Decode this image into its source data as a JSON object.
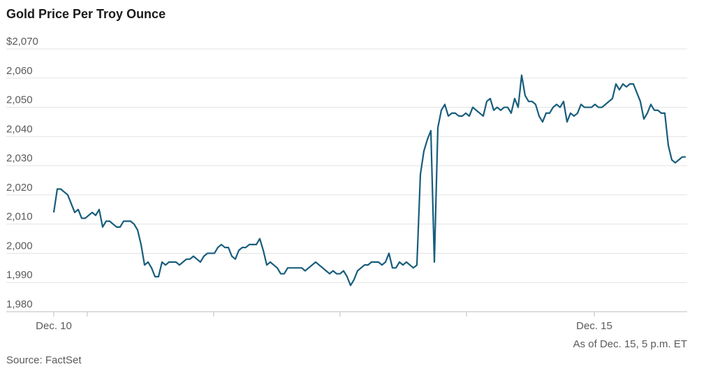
{
  "chart_data": {
    "type": "line",
    "title": "Gold Price Per Troy Ounce",
    "note": "As of Dec. 15, 5 p.m. ET",
    "source": "Source: FactSet",
    "color": "#175d7c",
    "grid": true,
    "ylim": [
      1980,
      2070
    ],
    "yticks": [
      {
        "value": 1980,
        "label": "1,980"
      },
      {
        "value": 1990,
        "label": "1,990"
      },
      {
        "value": 2000,
        "label": "2,000"
      },
      {
        "value": 2010,
        "label": "2,010"
      },
      {
        "value": 2020,
        "label": "2,020"
      },
      {
        "value": 2030,
        "label": "2,030"
      },
      {
        "value": 2040,
        "label": "2,040"
      },
      {
        "value": 2050,
        "label": "2,050"
      },
      {
        "value": 2060,
        "label": "2,060"
      },
      {
        "value": 2070,
        "label": "$2,070"
      }
    ],
    "xlim": [
      0,
      181.4
    ],
    "xticks": [
      {
        "value": 0,
        "label": "Dec. 10"
      },
      {
        "value": 9.6,
        "label": null
      },
      {
        "value": 45.8,
        "label": null
      },
      {
        "value": 82,
        "label": null
      },
      {
        "value": 118.2,
        "label": null
      },
      {
        "value": 154.8,
        "label": "Dec. 15"
      }
    ],
    "values": [
      2014,
      2022,
      2022,
      2021,
      2020,
      2017,
      2014,
      2015,
      2012,
      2012,
      2013,
      2014,
      2013,
      2015,
      2009,
      2011,
      2011,
      2010,
      2009,
      2009,
      2011,
      2011,
      2011,
      2010,
      2008,
      2003,
      1996,
      1997,
      1995,
      1992,
      1992,
      1997,
      1996,
      1997,
      1997,
      1997,
      1996,
      1997,
      1998,
      1998,
      1999,
      1998,
      1997,
      1999,
      2000,
      2000,
      2000,
      2002,
      2003,
      2002,
      2002,
      1999,
      1998,
      2001,
      2002,
      2002,
      2003,
      2003,
      2003,
      2005,
      2001,
      1996,
      1997,
      1996,
      1995,
      1993,
      1993,
      1995,
      1995,
      1995,
      1995,
      1995,
      1994,
      1995,
      1996,
      1997,
      1996,
      1995,
      1994,
      1993,
      1994,
      1993,
      1993,
      1994,
      1992,
      1989,
      1991,
      1994,
      1995,
      1996,
      1996,
      1997,
      1997,
      1997,
      1996,
      1997,
      2000,
      1995,
      1995,
      1997,
      1996,
      1997,
      1996,
      1995,
      1996,
      2027,
      2035,
      2039,
      2042,
      1997,
      2043,
      2049,
      2051,
      2047,
      2048,
      2048,
      2047,
      2047,
      2048,
      2047,
      2050,
      2049,
      2048,
      2047,
      2052,
      2053,
      2049,
      2050,
      2049,
      2050,
      2050,
      2048,
      2053,
      2050,
      2061,
      2054,
      2052,
      2052,
      2051,
      2047,
      2045,
      2048,
      2048,
      2050,
      2051,
      2050,
      2052,
      2045,
      2048,
      2047,
      2048,
      2051,
      2050,
      2050,
      2050,
      2051,
      2050,
      2050,
      2051,
      2052,
      2053,
      2058,
      2056,
      2058,
      2057,
      2058,
      2058,
      2055,
      2052,
      2046,
      2048,
      2051,
      2049,
      2049,
      2048,
      2048,
      2037,
      2032,
      2031,
      2032,
      2033,
      2033
    ]
  }
}
